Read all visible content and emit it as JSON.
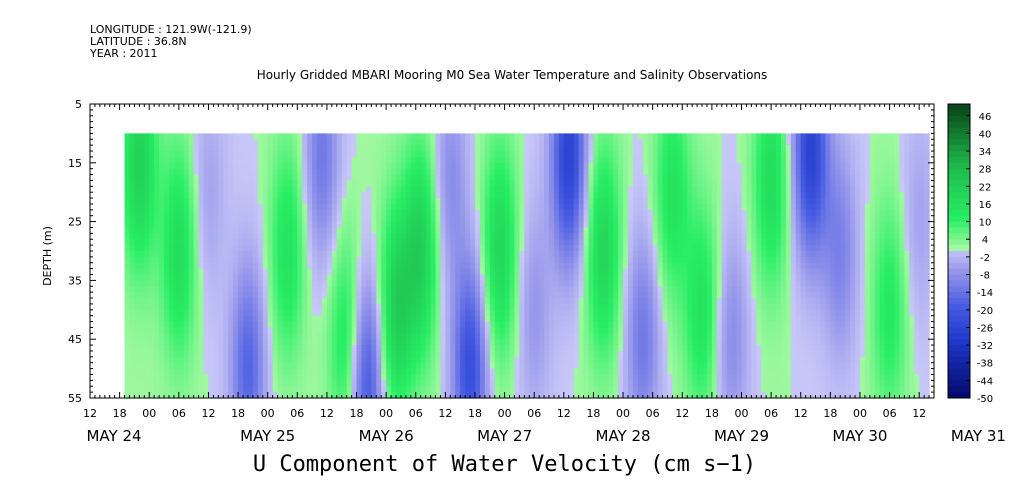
{
  "header": {
    "longitude_label": "LONGITUDE : 121.9W(-121.9)",
    "latitude_label": "LATITUDE : 36.8N",
    "year_label": "YEAR : 2011"
  },
  "chart_data": {
    "type": "heatmap",
    "title": "Hourly Gridded MBARI Mooring M0 Sea Water Temperature and Salinity Observations",
    "bottom_title": "U Component of Water Velocity (cm s−1)",
    "ylabel": "DEPTH (m)",
    "ylim": [
      55,
      5
    ],
    "y_ticks": [
      "5",
      "15",
      "25",
      "35",
      "45",
      "55"
    ],
    "y_tick_values": [
      5,
      15,
      25,
      35,
      45,
      55
    ],
    "data_depth_range": [
      10,
      55
    ],
    "x_start": "2011-05-24 12:00",
    "x_end": "2011-05-31 15:00",
    "data_start": "2011-05-24 19:00",
    "data_end": "2011-05-31 14:00",
    "hour_ticks": [
      "12",
      "18",
      "00",
      "06",
      "12",
      "18",
      "00",
      "06",
      "12",
      "18",
      "00",
      "06",
      "12",
      "18",
      "00",
      "06",
      "12",
      "18",
      "00",
      "06",
      "12",
      "18",
      "00",
      "06",
      "12",
      "18",
      "00",
      "06",
      "12"
    ],
    "day_labels": [
      "MAY 24",
      "MAY 25",
      "MAY 26",
      "MAY 27",
      "MAY 28",
      "MAY 29",
      "MAY 30",
      "MAY 31"
    ],
    "colorbar": {
      "levels": [
        48,
        46,
        44,
        42,
        40,
        38,
        36,
        34,
        32,
        30,
        28,
        26,
        24,
        22,
        20,
        18,
        16,
        14,
        12,
        10,
        8,
        6,
        4,
        2,
        0,
        -2,
        -4,
        -6,
        -8,
        -10,
        -12,
        -14,
        -16,
        -18,
        -20,
        -22,
        -24,
        -26,
        -28,
        -30,
        -32,
        -34,
        -36,
        -38,
        -40,
        -42,
        -44,
        -46,
        -48,
        -50
      ],
      "labels": [
        "46",
        "40",
        "34",
        "28",
        "22",
        "16",
        "10",
        "4",
        "-2",
        "-8",
        "-14",
        "-20",
        "-26",
        "-32",
        "-38",
        "-44",
        "-50"
      ],
      "label_values": [
        46,
        40,
        34,
        28,
        22,
        16,
        10,
        4,
        -2,
        -8,
        -14,
        -20,
        -26,
        -32,
        -38,
        -44,
        -50
      ],
      "range": [
        -50,
        50
      ]
    },
    "features": [
      {
        "t": "2011-05-24 22:00",
        "depth": 15,
        "u": 20
      },
      {
        "t": "2011-05-25 06:00",
        "depth": 30,
        "u": 16
      },
      {
        "t": "2011-05-25 12:00",
        "depth": 20,
        "u": -6
      },
      {
        "t": "2011-05-25 20:00",
        "depth": 50,
        "u": -18
      },
      {
        "t": "2011-05-26 04:00",
        "depth": 30,
        "u": 14
      },
      {
        "t": "2011-05-26 11:00",
        "depth": 14,
        "u": -14
      },
      {
        "t": "2011-05-26 16:00",
        "depth": 45,
        "u": 14
      },
      {
        "t": "2011-05-26 20:00",
        "depth": 52,
        "u": -22
      },
      {
        "t": "2011-05-27 02:00",
        "depth": 40,
        "u": 20
      },
      {
        "t": "2011-05-27 07:00",
        "depth": 30,
        "u": 20
      },
      {
        "t": "2011-05-27 13:00",
        "depth": 18,
        "u": -10
      },
      {
        "t": "2011-05-27 17:00",
        "depth": 50,
        "u": -24
      },
      {
        "t": "2011-05-27 23:00",
        "depth": 30,
        "u": 18
      },
      {
        "t": "2011-05-28 06:00",
        "depth": 40,
        "u": -8
      },
      {
        "t": "2011-05-28 13:00",
        "depth": 14,
        "u": -28
      },
      {
        "t": "2011-05-28 20:00",
        "depth": 30,
        "u": 18
      },
      {
        "t": "2011-05-29 04:00",
        "depth": 45,
        "u": -14
      },
      {
        "t": "2011-05-29 10:00",
        "depth": 20,
        "u": 14
      },
      {
        "t": "2011-05-29 16:00",
        "depth": 40,
        "u": 14
      },
      {
        "t": "2011-05-29 22:00",
        "depth": 45,
        "u": -10
      },
      {
        "t": "2011-05-30 06:00",
        "depth": 18,
        "u": 16
      },
      {
        "t": "2011-05-30 14:00",
        "depth": 13,
        "u": -28
      },
      {
        "t": "2011-05-30 20:00",
        "depth": 30,
        "u": -12
      },
      {
        "t": "2011-05-31 06:00",
        "depth": 40,
        "u": 12
      },
      {
        "t": "2011-05-31 12:00",
        "depth": 25,
        "u": -6
      }
    ]
  }
}
